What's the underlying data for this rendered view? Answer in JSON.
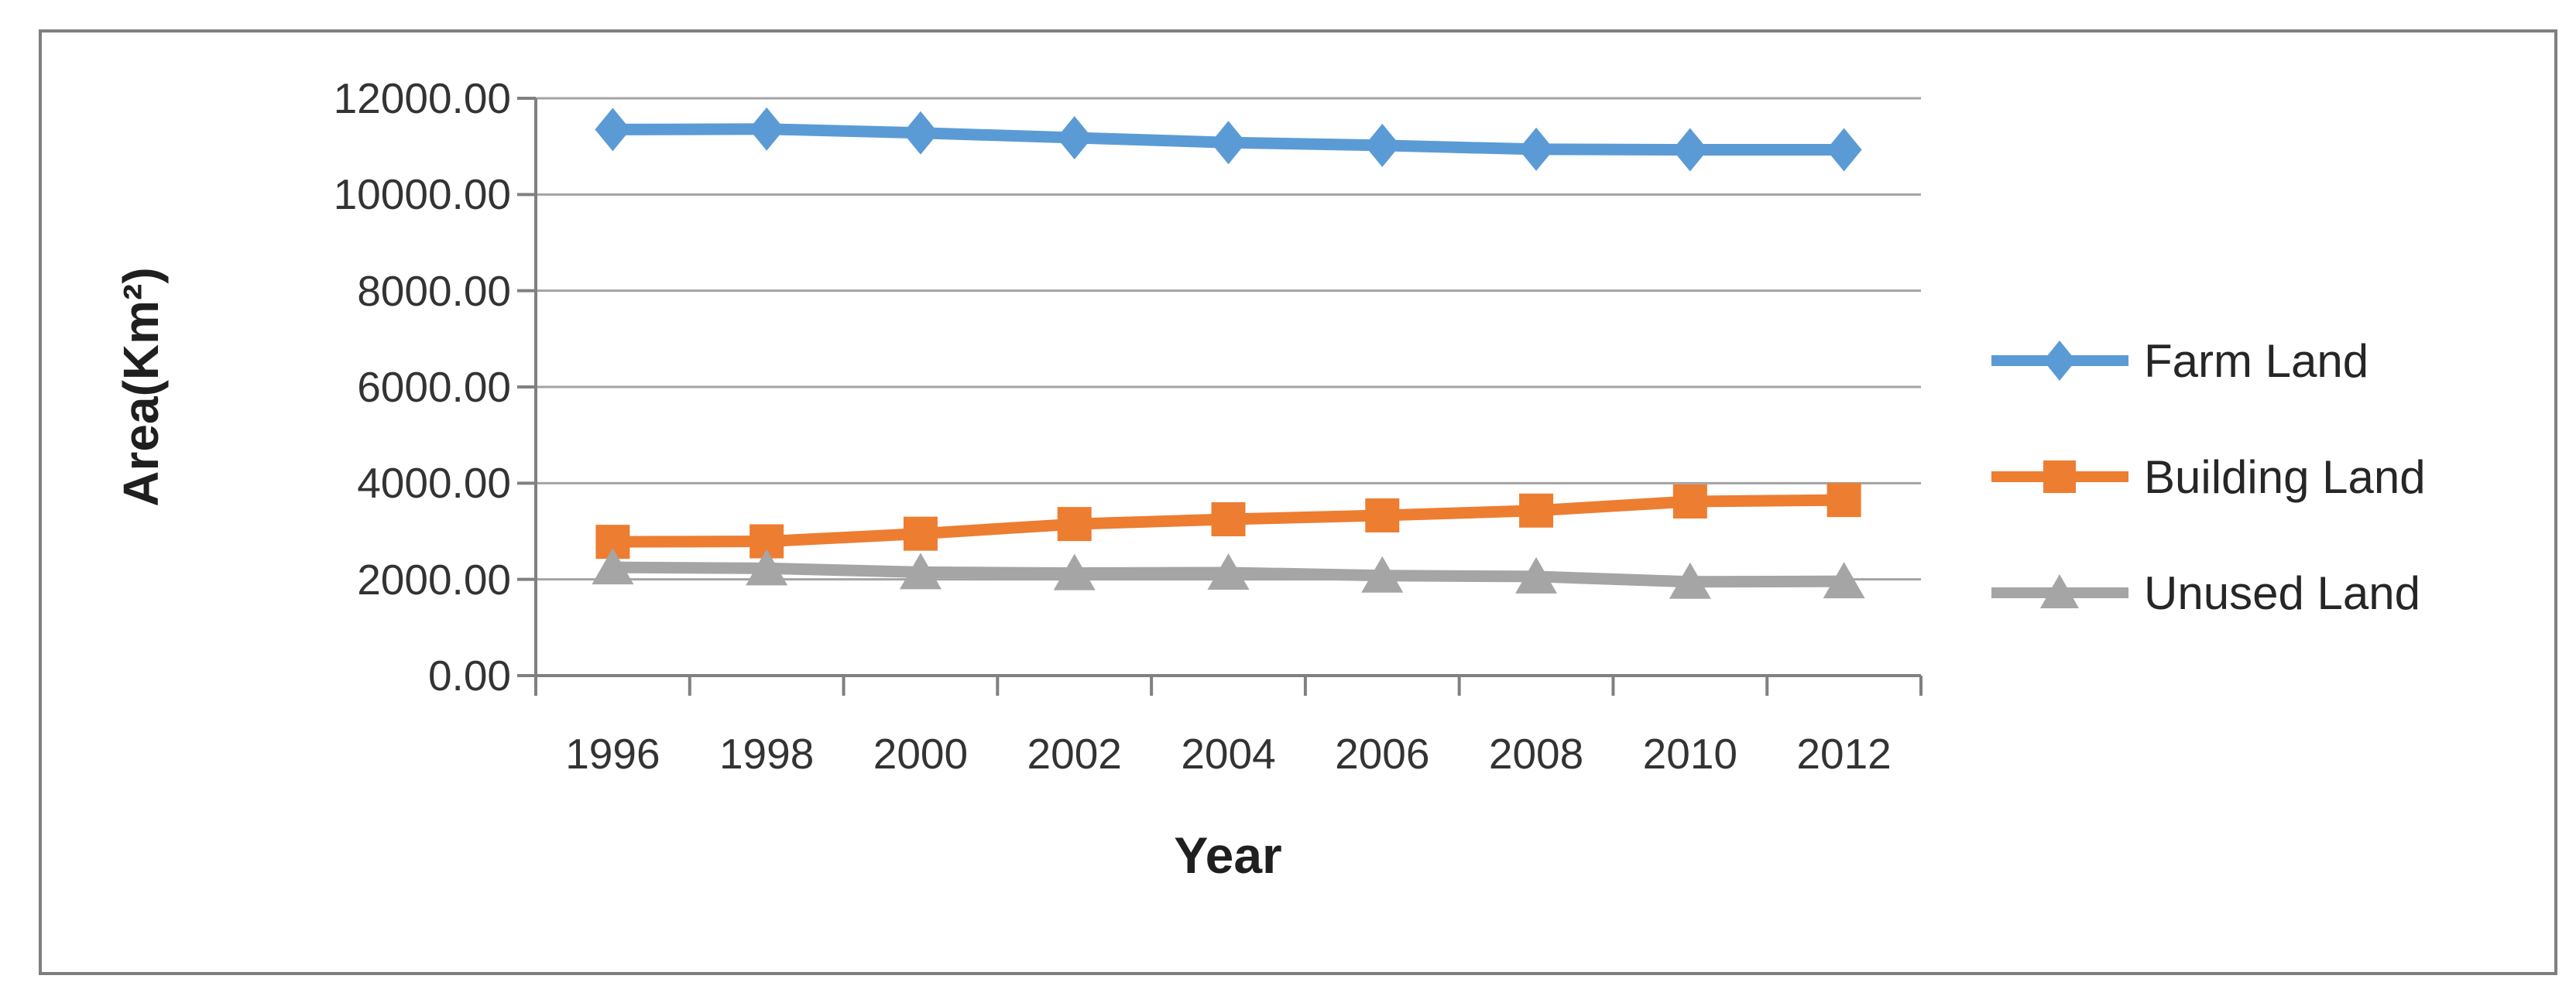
{
  "chart_data": {
    "type": "line",
    "title": "",
    "xlabel": "Year",
    "ylabel": "Area(Km²)",
    "categories": [
      "1996",
      "1998",
      "2000",
      "2002",
      "2004",
      "2006",
      "2008",
      "2010",
      "2012"
    ],
    "y_ticks": [
      0,
      2000,
      4000,
      6000,
      8000,
      10000,
      12000
    ],
    "y_tick_labels": [
      "0.00",
      "2000.00",
      "4000.00",
      "6000.00",
      "8000.00",
      "10000.00",
      "12000.00"
    ],
    "ylim": [
      0,
      12000
    ],
    "grid": "horizontal",
    "legend_position": "right",
    "series": [
      {
        "name": "Farm Land",
        "color": "#5B9BD5",
        "marker": "diamond",
        "values": [
          11350,
          11360,
          11280,
          11180,
          11080,
          11020,
          10940,
          10930,
          10930
        ]
      },
      {
        "name": "Building Land",
        "color": "#ED7D31",
        "marker": "square",
        "values": [
          2780,
          2790,
          2950,
          3150,
          3250,
          3330,
          3430,
          3620,
          3650
        ]
      },
      {
        "name": "Unused Land",
        "color": "#A5A5A5",
        "marker": "triangle",
        "values": [
          2250,
          2230,
          2150,
          2130,
          2140,
          2080,
          2060,
          1950,
          1960
        ]
      }
    ],
    "colors": {
      "background": "#FFFFFF",
      "figure_border": "#7F7F7F",
      "gridline": "#A3A3A3",
      "axis_line": "#808080",
      "tick_label": "#333333",
      "axis_title": "#1F1F1F"
    }
  }
}
